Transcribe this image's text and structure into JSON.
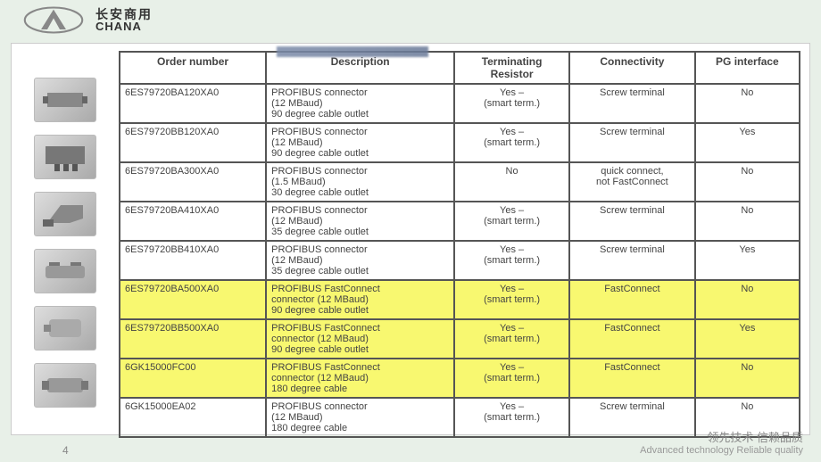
{
  "brand": {
    "cn": "长安商用",
    "en": "CHANA"
  },
  "page_number": "4",
  "footer": {
    "cn": "领先技术 信赖品质",
    "en": "Advanced technology Reliable quality"
  },
  "table": {
    "headers": [
      "Order number",
      "Description",
      "Terminating Resistor",
      "Connectivity",
      "PG interface"
    ],
    "rows": [
      {
        "hl": false,
        "cells": [
          "6ES79720BA120XA0",
          "PROFIBUS connector\n(12 MBaud)\n90 degree cable outlet",
          "Yes –\n(smart term.)",
          "Screw terminal",
          "No"
        ]
      },
      {
        "hl": false,
        "cells": [
          "6ES79720BB120XA0",
          "PROFIBUS connector\n(12 MBaud)\n90 degree cable outlet",
          "Yes –\n(smart term.)",
          "Screw terminal",
          "Yes"
        ]
      },
      {
        "hl": false,
        "cells": [
          "6ES79720BA300XA0",
          "PROFIBUS connector\n(1.5 MBaud)\n30 degree cable outlet",
          "No",
          "quick connect,\nnot FastConnect",
          "No"
        ]
      },
      {
        "hl": false,
        "cells": [
          "6ES79720BA410XA0",
          "PROFIBUS connector\n(12 MBaud)\n35 degree cable outlet",
          "Yes –\n(smart term.)",
          "Screw terminal",
          "No"
        ]
      },
      {
        "hl": false,
        "cells": [
          "6ES79720BB410XA0",
          "PROFIBUS connector\n(12 MBaud)\n35 degree cable outlet",
          "Yes –\n(smart term.)",
          "Screw terminal",
          "Yes"
        ]
      },
      {
        "hl": true,
        "cells": [
          "6ES79720BA500XA0",
          "PROFIBUS FastConnect\nconnector (12 MBaud)\n90 degree cable outlet",
          "Yes –\n(smart term.)",
          "FastConnect",
          "No"
        ]
      },
      {
        "hl": true,
        "cells": [
          "6ES79720BB500XA0",
          "PROFIBUS FastConnect\nconnector (12 MBaud)\n90 degree cable outlet",
          "Yes –\n(smart term.)",
          "FastConnect",
          "Yes"
        ]
      },
      {
        "hl": true,
        "cells": [
          "6GK15000FC00",
          "PROFIBUS FastConnect\nconnector (12 MBaud)\n180 degree cable",
          "Yes –\n(smart term.)",
          "FastConnect",
          "No"
        ]
      },
      {
        "hl": false,
        "cells": [
          "6GK15000EA02",
          "PROFIBUS connector\n(12 MBaud)\n180 degree cable",
          "Yes –\n(smart term.)",
          "Screw terminal",
          "No"
        ]
      }
    ],
    "col_align": [
      "left",
      "left",
      "center",
      "center",
      "center"
    ],
    "col_widths": [
      "140px",
      "180px",
      "110px",
      "120px",
      "100px"
    ]
  }
}
